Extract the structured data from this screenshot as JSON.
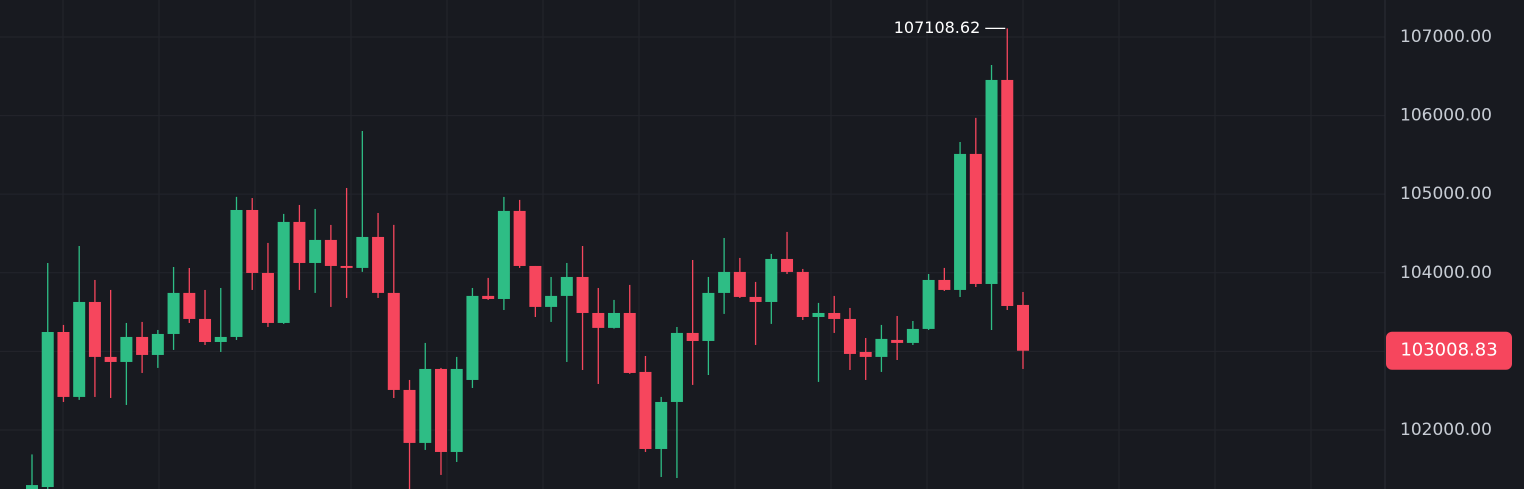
{
  "chart_data": {
    "type": "candlestick",
    "open": [
      101250,
      101275,
      103247,
      102421,
      103629,
      102930,
      102866,
      103184,
      102955,
      103222,
      103744,
      103413,
      103120,
      103184,
      104799,
      103998,
      103362,
      104647,
      104125,
      104418,
      104087,
      104062,
      104456,
      103744,
      102510,
      101836,
      102777,
      101721,
      102637,
      103706,
      103667,
      104787,
      104087,
      103566,
      103706,
      103947,
      103489,
      103299,
      103489,
      102739,
      101759,
      102357,
      103235,
      103133,
      103744,
      104011,
      103693,
      103629,
      104176,
      104011,
      103438,
      103489,
      103413,
      102993,
      102930,
      103146,
      103108,
      103286,
      103909,
      103782,
      105512,
      103858,
      106453,
      103591
    ],
    "high": [
      101690,
      104125,
      103337,
      104341,
      103909,
      103782,
      103362,
      103375,
      103273,
      104074,
      104061,
      103782,
      103807,
      104965,
      104951,
      104380,
      104749,
      104863,
      104812,
      104609,
      105079,
      105804,
      104761,
      104609,
      102637,
      103108,
      102790,
      102930,
      103807,
      103935,
      104965,
      104927,
      104087,
      103947,
      104125,
      104341,
      103807,
      103655,
      103846,
      102942,
      102421,
      103311,
      104163,
      103947,
      104443,
      104189,
      103884,
      104240,
      104520,
      104049,
      103617,
      103706,
      103553,
      103171,
      103337,
      103451,
      103387,
      103985,
      104062,
      105664,
      105970,
      106644,
      107108.62,
      103756
    ],
    "low": [
      101100,
      101200,
      102357,
      102383,
      102421,
      102408,
      102319,
      102726,
      102790,
      103019,
      103362,
      103082,
      102993,
      103146,
      103782,
      103311,
      103350,
      103782,
      103744,
      103566,
      103680,
      104011,
      103680,
      102408,
      101200,
      101747,
      101429,
      101594,
      102535,
      103655,
      103527,
      104062,
      103438,
      103375,
      102866,
      102764,
      102586,
      103290,
      102715,
      101721,
      101403,
      101390,
      102574,
      102700,
      103477,
      103680,
      103082,
      103350,
      103985,
      103400,
      102612,
      103235,
      102764,
      102637,
      102739,
      102891,
      103082,
      103273,
      103769,
      103693,
      103820,
      103273,
      103527,
      102777
    ],
    "close": [
      101300,
      103247,
      102421,
      103629,
      102930,
      102866,
      103184,
      102955,
      103222,
      103744,
      103413,
      103120,
      103184,
      104799,
      103998,
      103362,
      104647,
      104125,
      104418,
      104087,
      104062,
      104456,
      103744,
      102510,
      101836,
      102777,
      101721,
      102777,
      103706,
      103667,
      104787,
      104087,
      103566,
      103706,
      103947,
      103489,
      103299,
      103489,
      102726,
      101759,
      102357,
      103235,
      103133,
      103744,
      104011,
      103693,
      103629,
      104176,
      104011,
      103438,
      103489,
      103413,
      102968,
      102930,
      103159,
      103108,
      103286,
      103909,
      103782,
      105512,
      103858,
      106453,
      103578,
      103008.83
    ],
    "up_color": "#2ebd85",
    "down_color": "#f6465d",
    "ylim": [
      101250,
      107470
    ],
    "yticks": [
      {
        "value": 102000,
        "label": "102000.00"
      },
      {
        "value": 103000,
        "label": "103000.00"
      },
      {
        "value": 104000,
        "label": "104000.00"
      },
      {
        "value": 105000,
        "label": "105000.00"
      },
      {
        "value": 106000,
        "label": "106000.00"
      },
      {
        "value": 107000,
        "label": "107000.00"
      }
    ],
    "grid": true
  }
}
